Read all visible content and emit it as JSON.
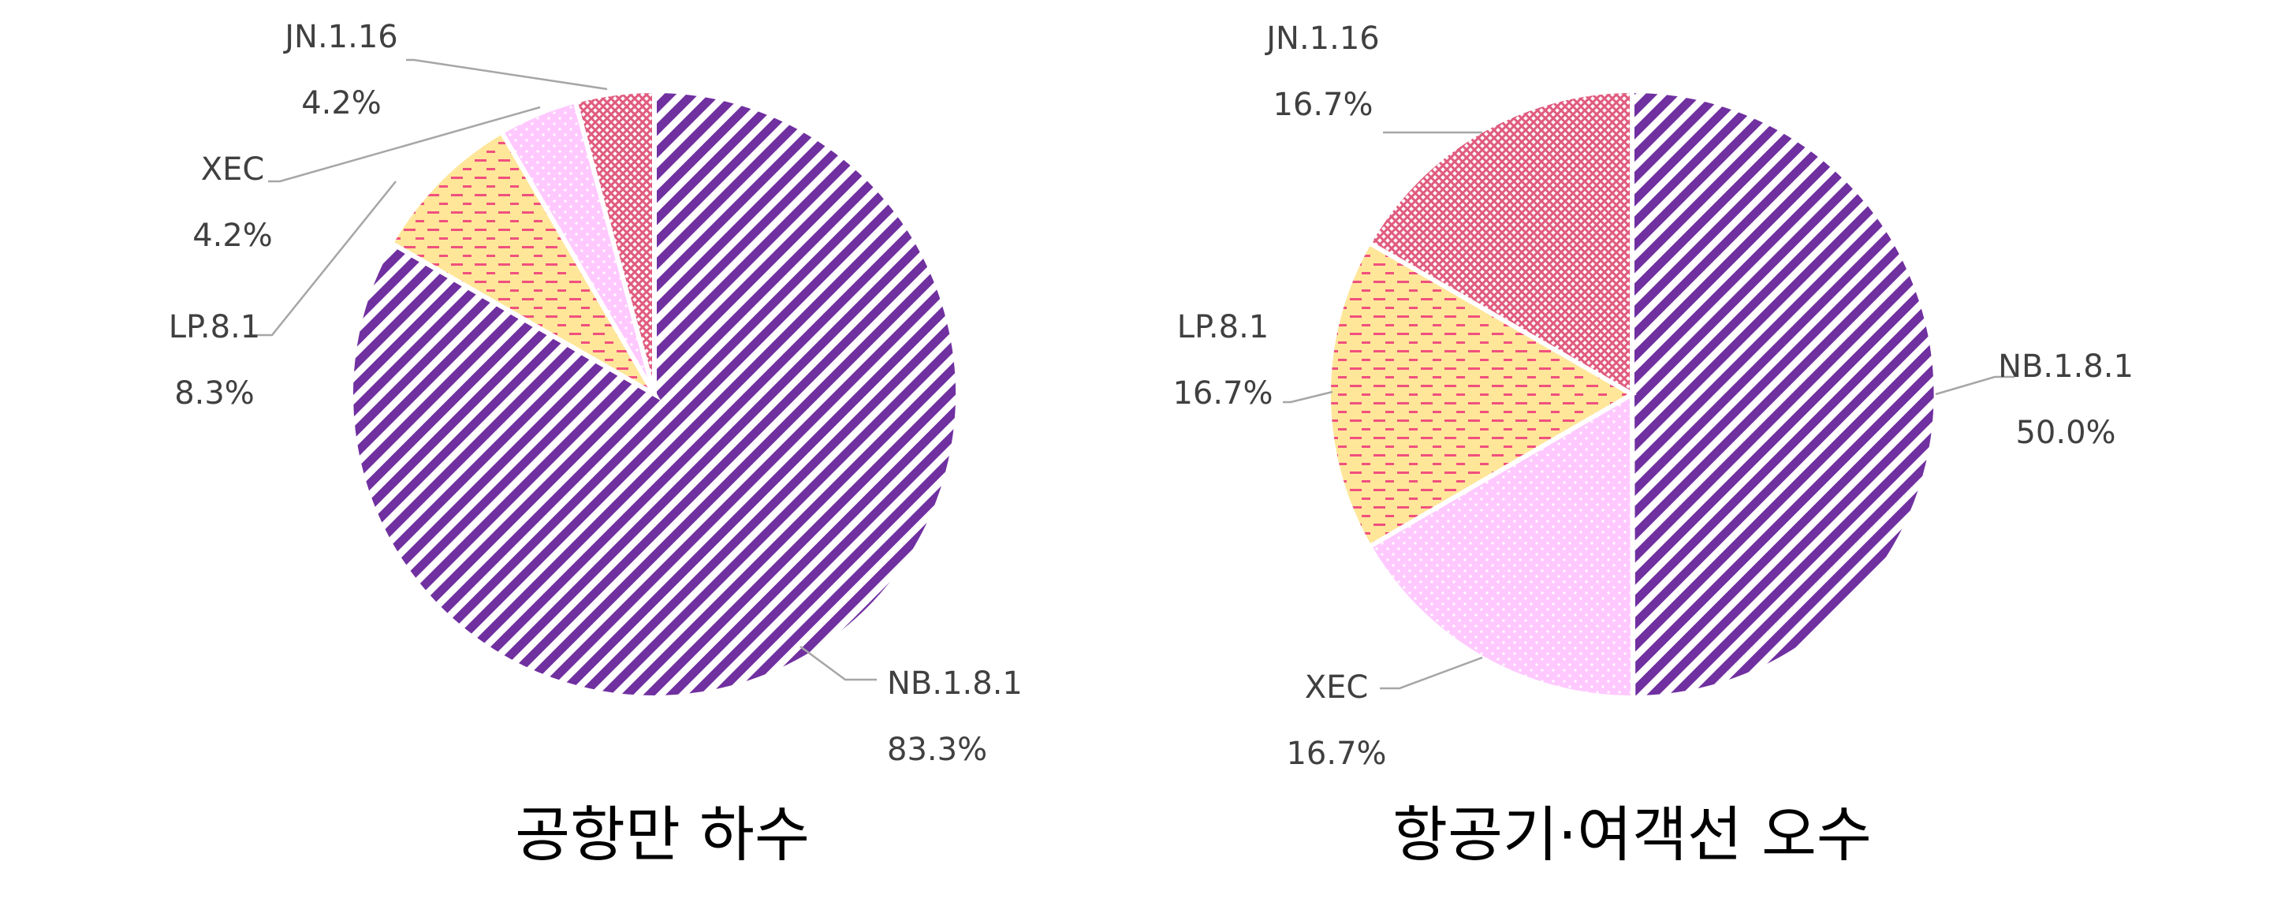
{
  "chart_data": [
    {
      "type": "pie",
      "title": "공항만 하수",
      "slices": [
        {
          "label": "NB.1.8.1",
          "value": 83.3,
          "pct_label": "83.3%",
          "pattern": "diag"
        },
        {
          "label": "LP.8.1",
          "value": 8.3,
          "pct_label": "8.3%",
          "pattern": "dash"
        },
        {
          "label": "XEC",
          "value": 4.2,
          "pct_label": "4.2%",
          "pattern": "dots"
        },
        {
          "label": "JN.1.16",
          "value": 4.2,
          "pct_label": "4.2%",
          "pattern": "grid"
        }
      ]
    },
    {
      "type": "pie",
      "title": "항공기·여객선 오수",
      "slices": [
        {
          "label": "NB.1.8.1",
          "value": 50.0,
          "pct_label": "50.0%",
          "pattern": "diag"
        },
        {
          "label": "XEC",
          "value": 16.7,
          "pct_label": "16.7%",
          "pattern": "dots"
        },
        {
          "label": "LP.8.1",
          "value": 16.7,
          "pct_label": "16.7%",
          "pattern": "dash"
        },
        {
          "label": "JN.1.16",
          "value": 16.7,
          "pct_label": "16.7%",
          "pattern": "grid"
        }
      ]
    }
  ],
  "colors": {
    "diag_fg": "#7030a0",
    "dash_bg": "#ffe699",
    "dash_fg": "#f0507e",
    "dots_bg": "#ffc9ff",
    "grid_bg": "#ffffff",
    "grid_fg": "#e05b7e",
    "leader": "#a6a6a6"
  }
}
